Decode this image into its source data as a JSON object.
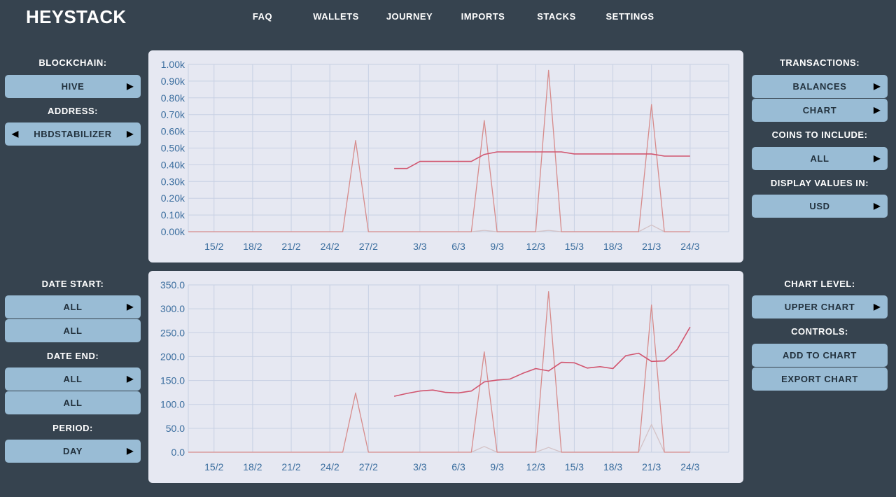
{
  "app": {
    "title": "HEYSTACK"
  },
  "nav": [
    "FAQ",
    "WALLETS",
    "JOURNEY",
    "IMPORTS",
    "STACKS",
    "SETTINGS"
  ],
  "left": {
    "blockchain_label": "BLOCKCHAIN:",
    "blockchain_value": "HIVE",
    "address_label": "ADDRESS:",
    "address_value": "HBDSTABILIZER",
    "date_start_label": "DATE START:",
    "date_start_value": "ALL",
    "date_start_sub": "ALL",
    "date_end_label": "DATE END:",
    "date_end_value": "ALL",
    "date_end_sub": "ALL",
    "period_label": "PERIOD:",
    "period_value": "DAY"
  },
  "right": {
    "transactions_label": "TRANSACTIONS:",
    "balances_button": "BALANCES",
    "chart_button": "CHART",
    "coins_label": "COINS TO INCLUDE:",
    "coins_value": "ALL",
    "display_label": "DISPLAY VALUES IN:",
    "display_value": "USD",
    "chart_level_label": "CHART LEVEL:",
    "chart_level_value": "UPPER CHART",
    "controls_label": "CONTROLS:",
    "add_button": "ADD TO CHART",
    "export_button": "EXPORT CHART"
  },
  "colors": {
    "background": "#36434f",
    "button": "#99bcd5",
    "panel": "#e6e8f2",
    "line_primary": "#d1556f",
    "line_spike": "#d68b8b",
    "line_faint": "#d3c2c6",
    "tick": "#3a6d9e",
    "grid": "#c7d0e3"
  },
  "chart_data": [
    {
      "type": "line",
      "ylim": [
        0,
        1000
      ],
      "y_ticks": [
        "0.00k",
        "0.10k",
        "0.20k",
        "0.30k",
        "0.40k",
        "0.50k",
        "0.60k",
        "0.70k",
        "0.80k",
        "0.90k",
        "1.00k"
      ],
      "xlim": [
        13,
        55
      ],
      "x_tick_values": [
        15,
        18,
        21,
        24,
        27,
        31,
        34,
        37,
        40,
        43,
        46,
        49,
        52
      ],
      "x_ticks": [
        "15/2",
        "18/2",
        "21/2",
        "24/2",
        "27/2",
        "3/3",
        "6/3",
        "9/3",
        "12/3",
        "15/3",
        "18/3",
        "21/3",
        "24/3"
      ],
      "series": [
        {
          "style": "spike",
          "x": [
            13,
            21,
            25,
            26,
            27,
            35,
            36,
            37,
            40,
            41,
            42,
            48,
            49,
            50,
            52
          ],
          "y": [
            0,
            0,
            0,
            545,
            0,
            0,
            665,
            0,
            0,
            965,
            0,
            0,
            760,
            0,
            0
          ]
        },
        {
          "style": "primary",
          "x": [
            29,
            30,
            31,
            32,
            33,
            34,
            35,
            36,
            37,
            38,
            39,
            40,
            41,
            42,
            43,
            44,
            45,
            46,
            47,
            48,
            49,
            50,
            51,
            52
          ],
          "y": [
            378,
            378,
            420,
            420,
            420,
            420,
            420,
            462,
            477,
            477,
            477,
            477,
            477,
            477,
            465,
            465,
            465,
            465,
            465,
            465,
            465,
            452,
            452,
            452
          ]
        },
        {
          "style": "faint",
          "x": [
            35,
            36,
            37,
            40,
            41,
            42,
            48,
            49,
            50
          ],
          "y": [
            0,
            8,
            0,
            0,
            8,
            0,
            0,
            40,
            0
          ]
        }
      ]
    },
    {
      "type": "line",
      "ylim": [
        0,
        350
      ],
      "y_ticks": [
        "0.0",
        "50.0",
        "100.0",
        "150.0",
        "200.0",
        "250.0",
        "300.0",
        "350.0"
      ],
      "xlim": [
        13,
        55
      ],
      "x_tick_values": [
        15,
        18,
        21,
        24,
        27,
        31,
        34,
        37,
        40,
        43,
        46,
        49,
        52
      ],
      "x_ticks": [
        "15/2",
        "18/2",
        "21/2",
        "24/2",
        "27/2",
        "3/3",
        "6/3",
        "9/3",
        "12/3",
        "15/3",
        "18/3",
        "21/3",
        "24/3"
      ],
      "series": [
        {
          "style": "spike",
          "x": [
            13,
            21,
            25,
            26,
            27,
            35,
            36,
            37,
            40,
            41,
            42,
            48,
            49,
            50,
            52
          ],
          "y": [
            0,
            0,
            0,
            124,
            0,
            0,
            210,
            0,
            0,
            336,
            0,
            0,
            308,
            0,
            0
          ]
        },
        {
          "style": "primary",
          "x": [
            29,
            30,
            31,
            32,
            33,
            34,
            35,
            36,
            37,
            38,
            39,
            40,
            41,
            42,
            43,
            44,
            45,
            46,
            47,
            48,
            49,
            50,
            51,
            52
          ],
          "y": [
            117,
            123,
            128,
            130,
            125,
            124,
            128,
            147,
            151,
            153,
            165,
            175,
            170,
            188,
            187,
            176,
            179,
            175,
            202,
            207,
            190,
            191,
            215,
            262
          ]
        },
        {
          "style": "faint",
          "x": [
            35,
            36,
            37,
            40,
            41,
            42,
            48,
            49,
            50
          ],
          "y": [
            0,
            12,
            0,
            0,
            10,
            0,
            0,
            58,
            0
          ]
        }
      ]
    }
  ]
}
